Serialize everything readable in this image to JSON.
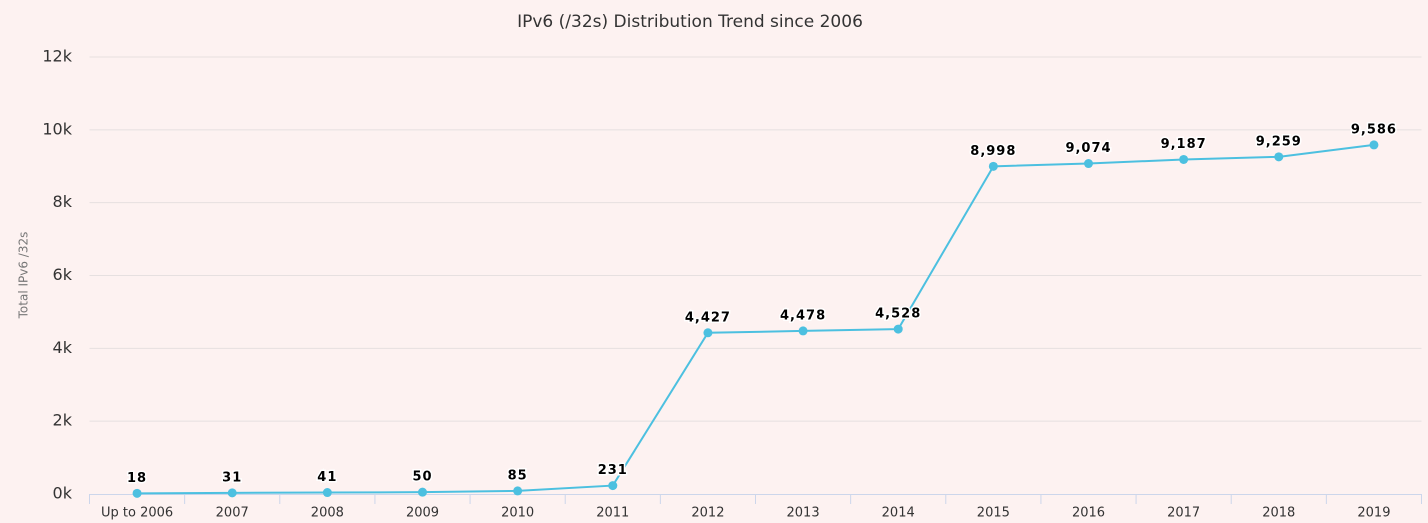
{
  "chart_data": {
    "type": "line",
    "title": "IPv6 (/32s) Distribution Trend since 2006",
    "y_label": "Total IPv6 /32s",
    "categories": [
      "Up to 2006",
      "2007",
      "2008",
      "2009",
      "2010",
      "2011",
      "2012",
      "2013",
      "2014",
      "2015",
      "2016",
      "2017",
      "2018",
      "2019"
    ],
    "series": [
      {
        "name": "Total IPv6 /32s",
        "color": "#4cc0e0",
        "values": [
          18,
          31,
          41,
          50,
          85,
          231,
          4427,
          4478,
          4528,
          8998,
          9074,
          9187,
          9259,
          9586
        ],
        "value_labels": [
          "18",
          "31",
          "41",
          "50",
          "85",
          "231",
          "4,427",
          "4,478",
          "4,528",
          "8,998",
          "9,074",
          "9,187",
          "9,259",
          "9,586"
        ]
      }
    ],
    "ylim": [
      0,
      12000
    ],
    "yticks": [
      {
        "value": 0,
        "label": "0k"
      },
      {
        "value": 2000,
        "label": "2k"
      },
      {
        "value": 4000,
        "label": "4k"
      },
      {
        "value": 6000,
        "label": "6k"
      },
      {
        "value": 8000,
        "label": "8k"
      },
      {
        "value": 10000,
        "label": "10k"
      },
      {
        "value": 12000,
        "label": "12k"
      }
    ],
    "grid": true
  }
}
